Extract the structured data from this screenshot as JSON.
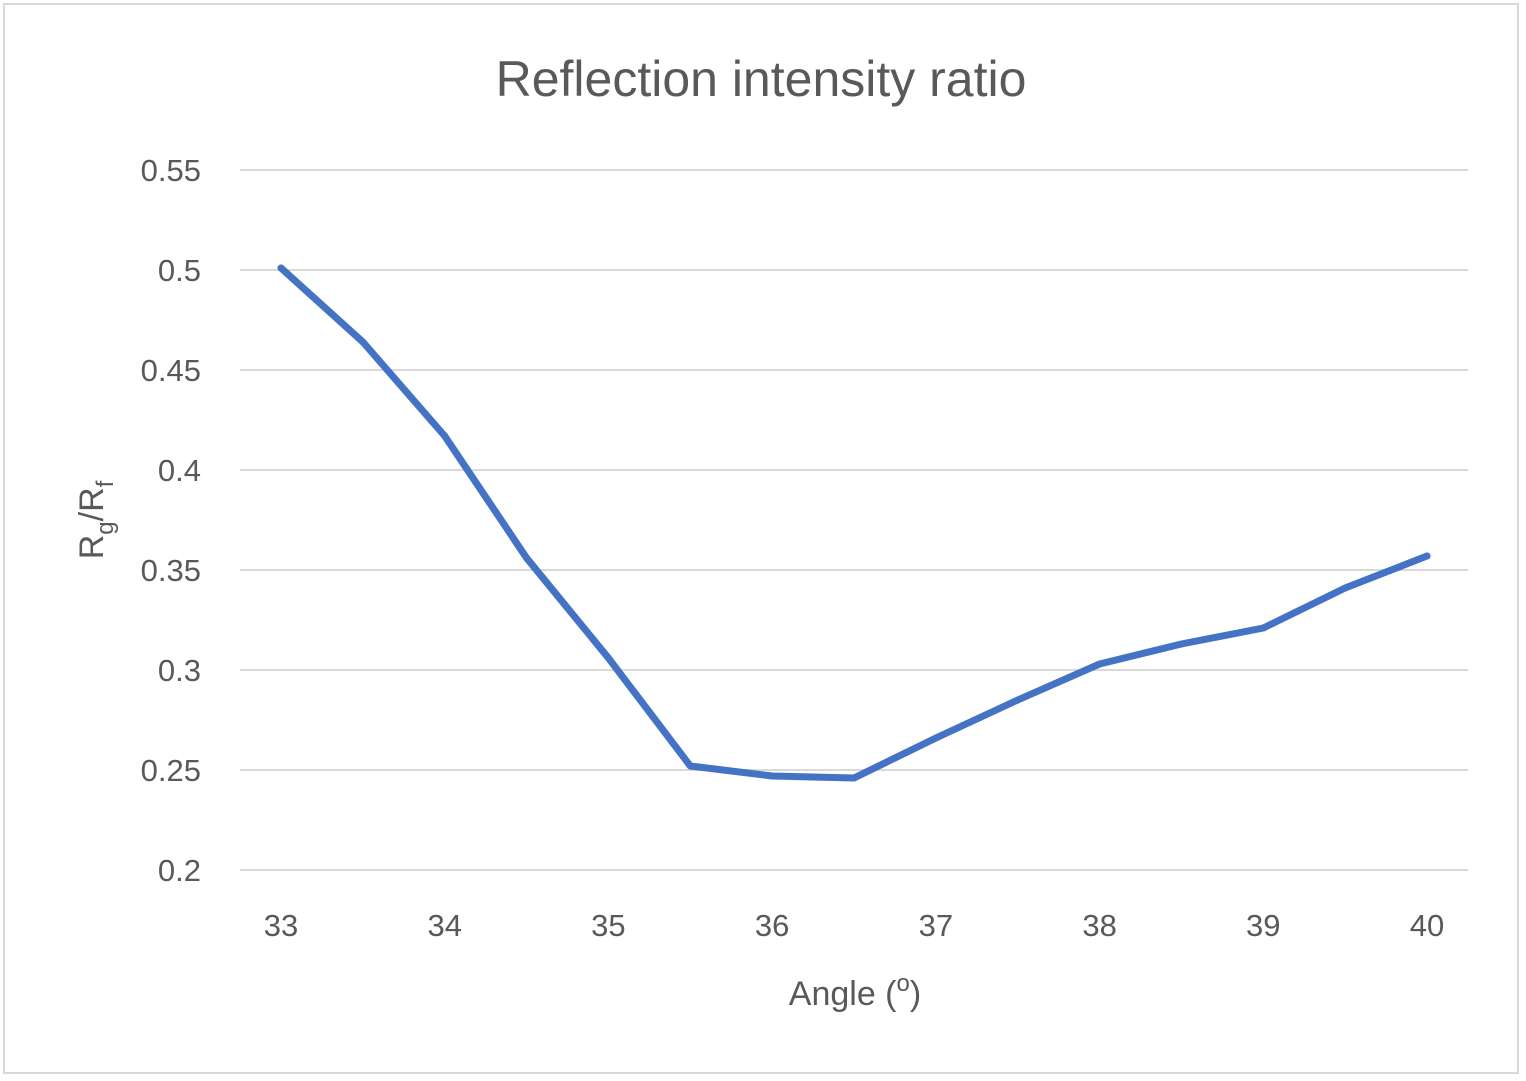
{
  "chart_data": {
    "type": "line",
    "title": "Reflection intensity ratio",
    "xlabel": "Angle (o)",
    "xlabel_parts": {
      "main": "Angle (",
      "sup": "o",
      "close": ")"
    },
    "ylabel": "Rg/Rf",
    "ylabel_parts": {
      "r1": "R",
      "sub1": "g",
      "slash": "/R",
      "sub2": "f"
    },
    "x": [
      33,
      33.5,
      34,
      34.5,
      35,
      35.5,
      36,
      36.5,
      37,
      37.5,
      38,
      38.5,
      39,
      39.5,
      40
    ],
    "series": [
      {
        "values": [
          0.501,
          0.464,
          0.417,
          0.356,
          0.306,
          0.252,
          0.247,
          0.246,
          0.266,
          0.285,
          0.303,
          0.313,
          0.321,
          0.341,
          0.357
        ]
      }
    ],
    "xlim": [
      33,
      40
    ],
    "ylim": [
      0.2,
      0.55
    ],
    "xticks": [
      "33",
      "34",
      "35",
      "36",
      "37",
      "38",
      "39",
      "40"
    ],
    "yticks": [
      "0.2",
      "0.25",
      "0.3",
      "0.35",
      "0.4",
      "0.45",
      "0.5",
      "0.55"
    ],
    "grid": "horizontal",
    "legend": "none",
    "line_color": "#4472C4",
    "grid_color": "#d9d9d9",
    "text_color": "#595959"
  }
}
